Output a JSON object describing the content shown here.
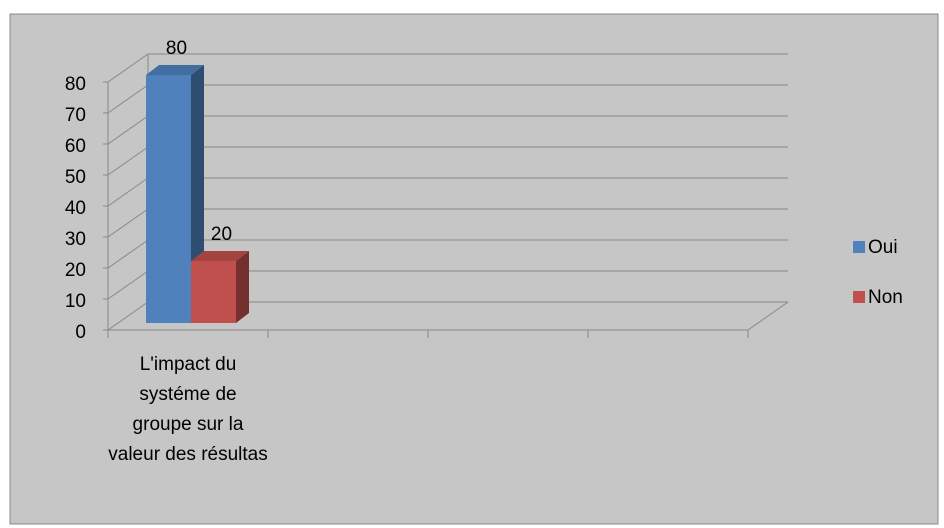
{
  "chart_data": {
    "type": "bar3d",
    "categories": [
      "L'impact du systéme de groupe sur la valeur des résultas",
      null,
      null,
      null
    ],
    "series": [
      {
        "name": "Oui",
        "color": "#4f81bd",
        "values": [
          80,
          null,
          null,
          null
        ]
      },
      {
        "name": "Non",
        "color": "#c0504d",
        "values": [
          20,
          null,
          null,
          null
        ]
      }
    ],
    "ylim": [
      0,
      80
    ],
    "yticks": [
      0,
      10,
      20,
      30,
      40,
      50,
      60,
      70,
      80
    ],
    "grid": true,
    "legend": "right"
  }
}
